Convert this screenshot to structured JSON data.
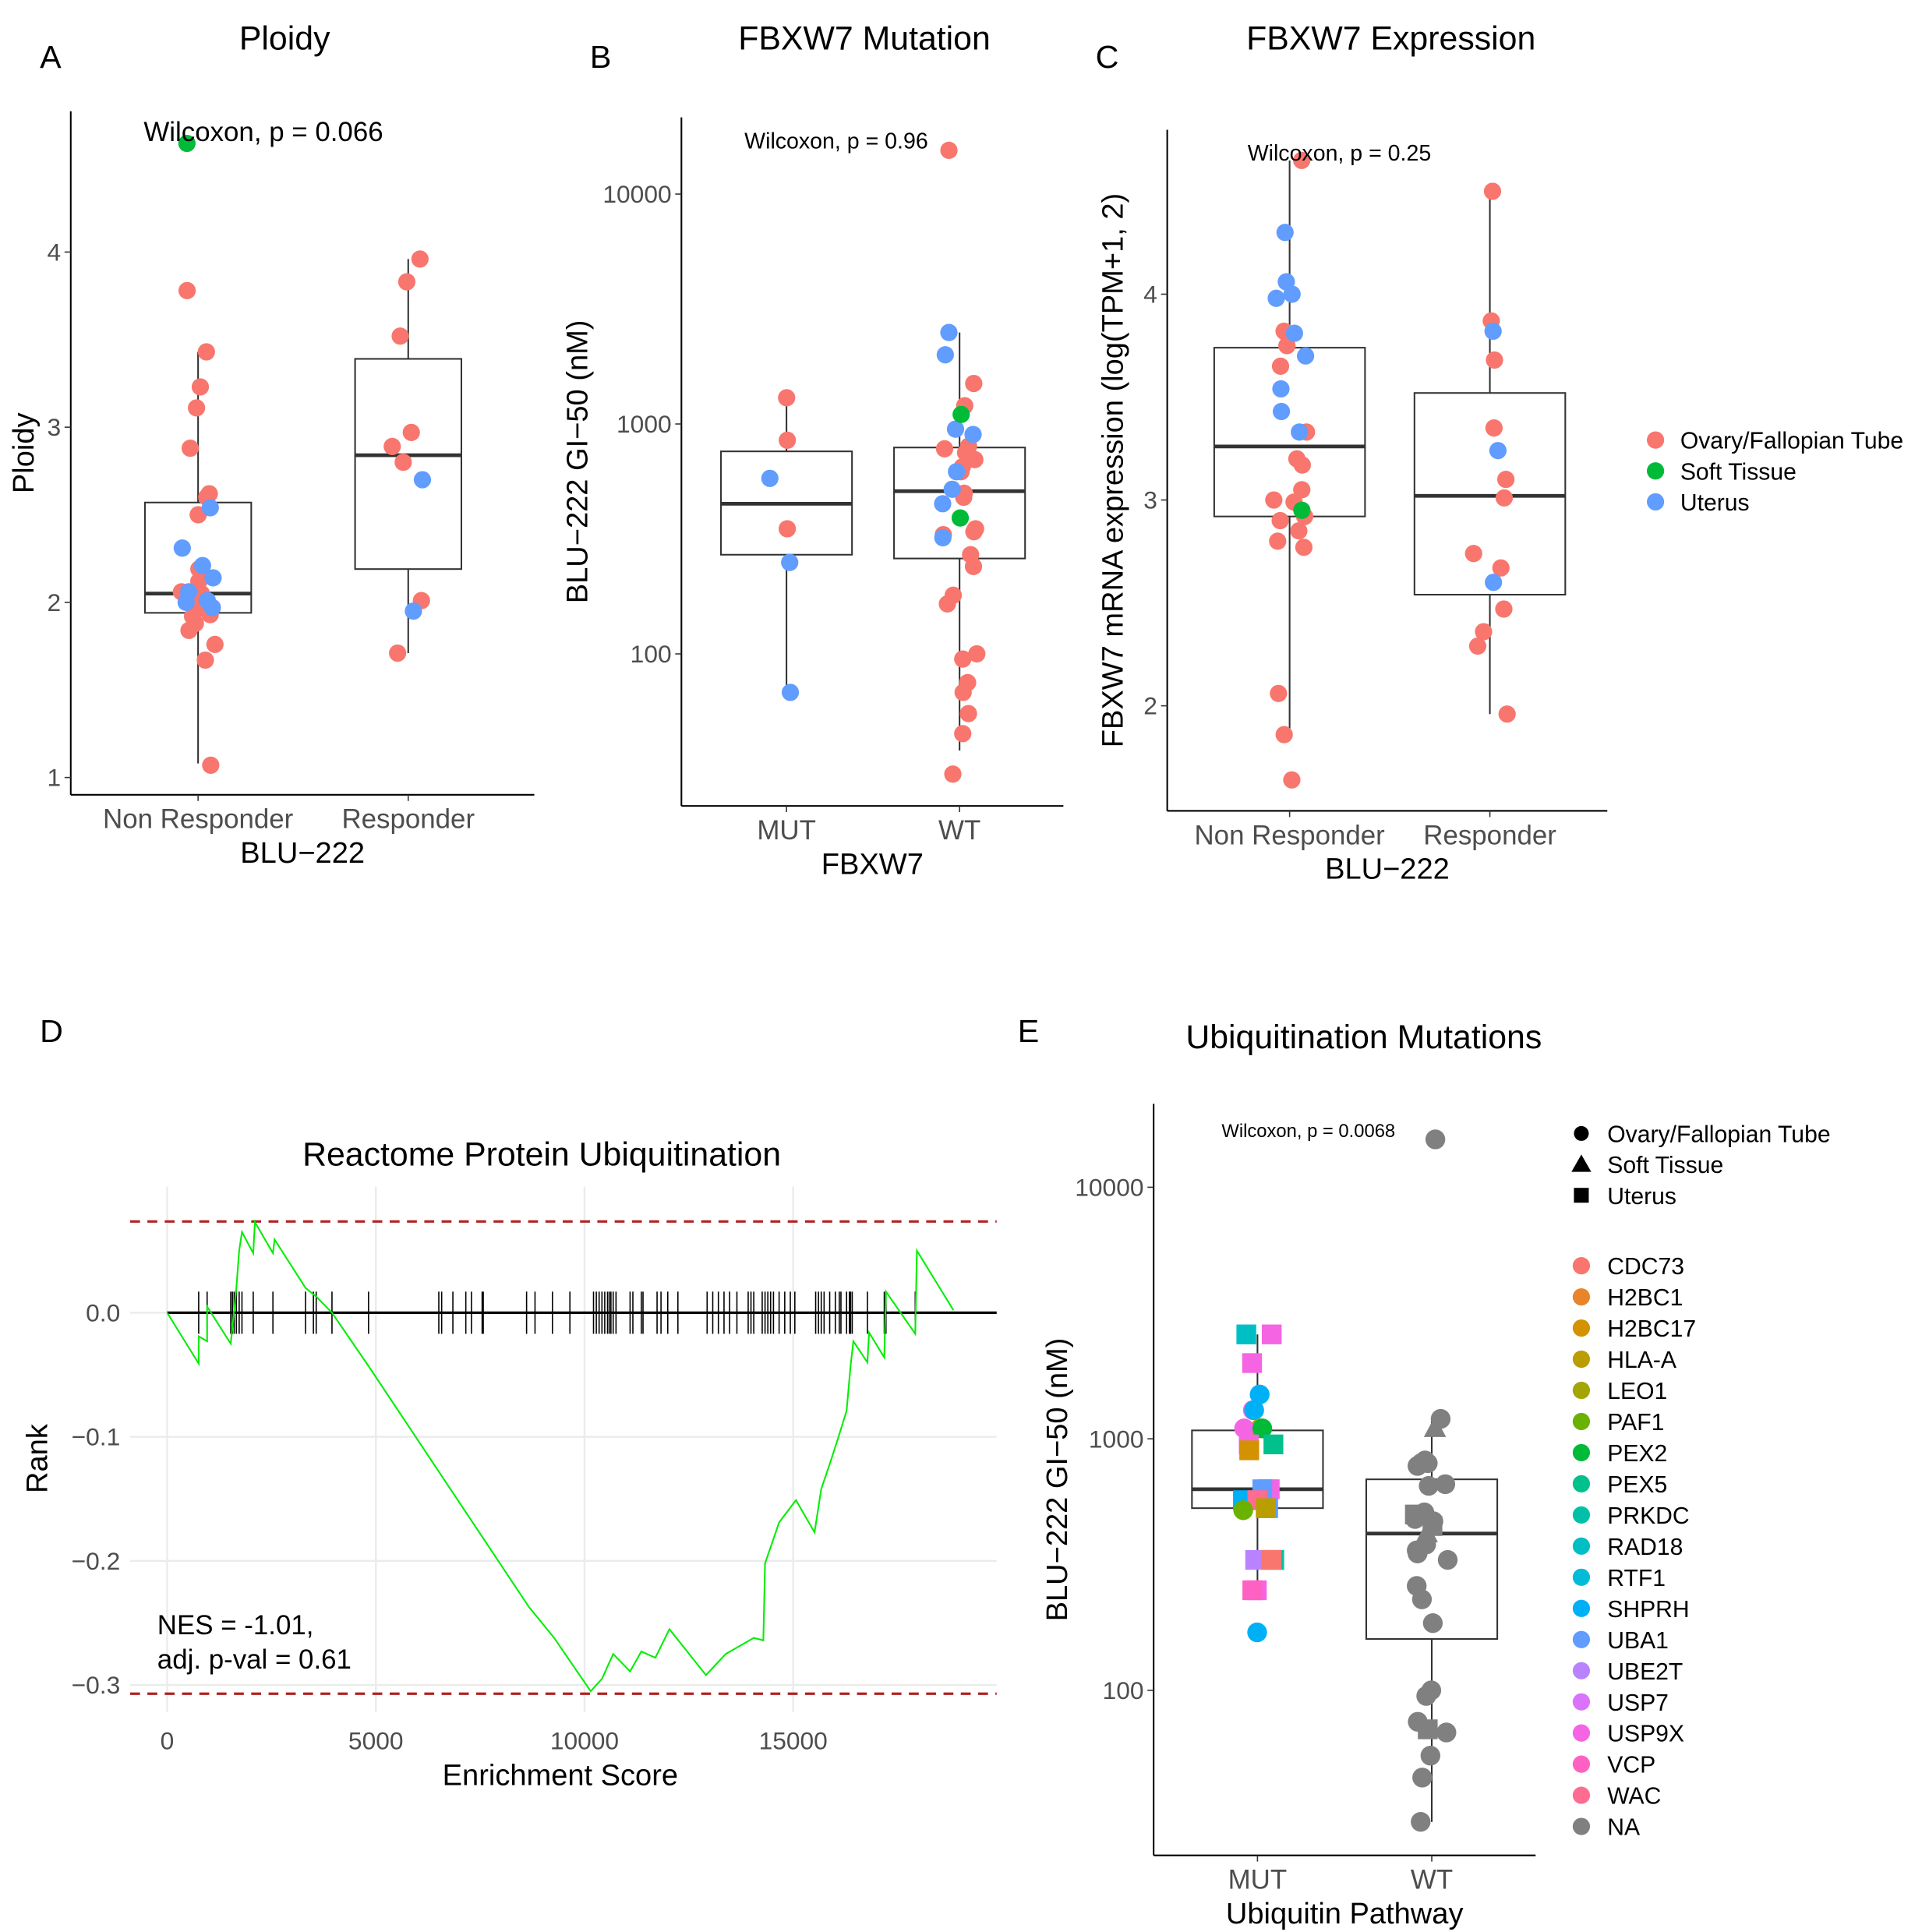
{
  "panel_labels": [
    "A",
    "B",
    "C",
    "D",
    "E"
  ],
  "tissue_colors": {
    "Ovary/Fallopian Tube": "#F8766D",
    "Soft Tissue": "#00BA38",
    "Uterus": "#619CFF"
  },
  "gene_colors": {
    "CDC73": "#F8766D",
    "H2BC1": "#E8852A",
    "H2BC17": "#D39200",
    "HLA-A": "#BA9E00",
    "LEO1": "#A3A500",
    "PAF1": "#6BB100",
    "PEX2": "#00BA38",
    "PEX5": "#00C08B",
    "PRKDC": "#00C1A7",
    "RAD18": "#00BFC4",
    "RTF1": "#00BCD8",
    "SHPRH": "#00B0F6",
    "UBA1": "#619CFF",
    "UBE2T": "#B983FF",
    "USP7": "#DB72FB",
    "USP9X": "#F564E3",
    "VCP": "#FF61C3",
    "WAC": "#FF6C91",
    "NA": "#808080"
  },
  "chart_data": [
    {
      "type": "box",
      "title": "Ploidy",
      "xlabel": "BLU−222",
      "ylabel": "Ploidy",
      "y_scale": "linear",
      "yticks": [
        1,
        2,
        3,
        4
      ],
      "ytick_labels": [
        "1",
        "2",
        "3",
        "4"
      ],
      "annotation": "Wilcoxon, p = 0.066",
      "groups": [
        {
          "name": "Non Responder",
          "box": {
            "lower": 1.08,
            "q1": 1.94,
            "median": 2.05,
            "q3": 2.57,
            "upper": 3.43
          },
          "points": {
            "Ovary/Fallopian Tube": [
              3.78,
              3.43,
              3.23,
              3.11,
              2.88,
              2.62,
              2.6,
              2.5,
              2.19,
              2.12,
              2.06,
              2.05,
              2.0,
              1.95,
              1.93,
              1.92,
              1.88,
              1.84,
              1.76,
              1.67,
              1.07
            ],
            "Uterus": [
              2.54,
              2.31,
              2.21,
              2.14,
              2.06,
              2.01,
              2.0,
              1.97
            ],
            "Soft Tissue": [
              4.62
            ]
          },
          "outliers": []
        },
        {
          "name": "Responder",
          "box": {
            "lower": 1.71,
            "q1": 2.19,
            "median": 2.84,
            "q3": 3.39,
            "upper": 3.96
          },
          "points": {
            "Ovary/Fallopian Tube": [
              3.96,
              3.83,
              3.52,
              2.97,
              2.89,
              2.8,
              2.01,
              1.71
            ],
            "Uterus": [
              2.7,
              1.95
            ],
            "Soft Tissue": []
          },
          "outliers": []
        }
      ]
    },
    {
      "type": "box",
      "title": "FBXW7 Mutation",
      "xlabel": "FBXW7",
      "ylabel": "BLU−222 GI−50 (nM)",
      "y_scale": "log10",
      "yticks": [
        100,
        1000,
        10000
      ],
      "ytick_labels": [
        "100",
        "1000",
        "10000"
      ],
      "annotation": "Wilcoxon, p = 0.96",
      "groups": [
        {
          "name": "MUT",
          "box": {
            "lower": 68,
            "q1": 270,
            "median": 450,
            "q3": 760,
            "upper": 1300
          },
          "points": {
            "Ovary/Fallopian Tube": [
              1300,
              850,
              350
            ],
            "Uterus": [
              580,
              250,
              68
            ],
            "Soft Tissue": []
          },
          "outliers": []
        },
        {
          "name": "WT",
          "box": {
            "lower": 38,
            "q1": 260,
            "median": 510,
            "q3": 790,
            "upper": 2500
          },
          "points": {
            "Ovary/Fallopian Tube": [
              15500,
              1500,
              1200,
              800,
              780,
              750,
              700,
              650,
              620,
              500,
              480,
              350,
              340,
              330,
              270,
              240,
              180,
              165,
              100,
              95,
              75,
              68,
              55,
              45,
              30
            ],
            "Uterus": [
              2500,
              2000,
              950,
              900,
              620,
              520,
              450,
              320
            ],
            "Soft Tissue": [
              1100,
              390
            ]
          },
          "outliers": []
        }
      ]
    },
    {
      "type": "box",
      "title": "FBXW7 Expression",
      "xlabel": "BLU−222",
      "ylabel": "FBXW7 mRNA expression (log(TPM+1, 2)",
      "y_scale": "linear",
      "yticks": [
        2,
        3,
        4
      ],
      "ytick_labels": [
        "2",
        "3",
        "4"
      ],
      "annotation": "Wilcoxon, p = 0.25",
      "legend": {
        "position": "right",
        "entries": [
          "Ovary/Fallopian Tube",
          "Soft Tissue",
          "Uterus"
        ]
      },
      "groups": [
        {
          "name": "Non Responder",
          "box": {
            "lower": 1.86,
            "q1": 2.92,
            "median": 3.26,
            "q3": 3.74,
            "upper": 4.65
          },
          "points": {
            "Ovary/Fallopian Tube": [
              4.65,
              3.82,
              3.75,
              3.65,
              3.33,
              3.2,
              3.17,
              3.05,
              3.0,
              2.99,
              2.92,
              2.9,
              2.85,
              2.8,
              2.77,
              2.06,
              1.86,
              1.64
            ],
            "Uterus": [
              4.3,
              4.06,
              4.0,
              3.98,
              3.81,
              3.7,
              3.54,
              3.43,
              3.33
            ],
            "Soft Tissue": [
              2.95
            ]
          },
          "outliers": [
            1.64
          ]
        },
        {
          "name": "Responder",
          "box": {
            "lower": 1.96,
            "q1": 2.54,
            "median": 3.02,
            "q3": 3.52,
            "upper": 4.5
          },
          "points": {
            "Ovary/Fallopian Tube": [
              4.5,
              3.87,
              3.68,
              3.35,
              3.1,
              3.01,
              2.74,
              2.67,
              2.47,
              2.36,
              2.29,
              1.96
            ],
            "Uterus": [
              3.82,
              3.24,
              2.6
            ],
            "Soft Tissue": []
          },
          "outliers": []
        }
      ]
    },
    {
      "type": "line",
      "title": "Reactome Protein Ubiquitination",
      "xlabel": "Enrichment Score",
      "ylabel": "Rank",
      "xlim": [
        -889,
        19876
      ],
      "ylim": [
        -0.322,
        0.102
      ],
      "grid": true,
      "xticks": [
        0,
        5000,
        10000,
        15000
      ],
      "xtick_labels": [
        "0",
        "5000",
        "10000",
        "15000"
      ],
      "yticks": [
        0,
        -0.1,
        -0.2,
        -0.3
      ],
      "ytick_labels": [
        "0.0",
        "−0.1",
        "−0.2",
        "−0.3"
      ],
      "annotation": [
        "NES = -1.01,",
        "adj. p-val = 0.61"
      ],
      "line_color": "#00EE00",
      "threshold_lines": [
        0.0735,
        -0.307
      ],
      "threshold_color": "#B22222",
      "series": {
        "x": [
          0,
          755,
          755,
          957,
          957,
          1523,
          1658,
          1725,
          1792,
          2062,
          2102,
          2534,
          2574,
          3315,
          3571,
          3949,
          4825,
          8666,
          9272,
          10148,
          10418,
          10687,
          11092,
          11361,
          11698,
          12035,
          12911,
          13383,
          14056,
          14285,
          14326,
          14663,
          15067,
          15512,
          15673,
          15875,
          16078,
          16280,
          16375,
          16442,
          16779,
          16819,
          17183,
          17224,
          17925,
          17965,
          18841
        ],
        "y": [
          0,
          -0.041,
          -0.019,
          -0.023,
          0.005,
          -0.025,
          0.02,
          0.05,
          0.065,
          0.048,
          0.073,
          0.048,
          0.059,
          0.02,
          0.013,
          0,
          -0.043,
          -0.237,
          -0.262,
          -0.305,
          -0.295,
          -0.275,
          -0.289,
          -0.273,
          -0.278,
          -0.255,
          -0.292,
          -0.275,
          -0.262,
          -0.264,
          -0.202,
          -0.169,
          -0.151,
          -0.177,
          -0.142,
          -0.122,
          -0.101,
          -0.079,
          -0.043,
          -0.023,
          -0.04,
          -0.016,
          -0.036,
          0.017,
          -0.017,
          0.05,
          0.002
        ]
      },
      "hits": [
        755,
        957,
        1523,
        1563,
        1604,
        1658,
        1725,
        1792,
        2062,
        2534,
        3315,
        3504,
        3571,
        3949,
        4825,
        6509,
        6577,
        6846,
        7156,
        7291,
        7547,
        7574,
        8612,
        8814,
        9232,
        9650,
        10216,
        10283,
        10350,
        10418,
        10485,
        10552,
        10593,
        10633,
        10687,
        10755,
        11092,
        11159,
        11361,
        11402,
        11739,
        11833,
        11995,
        12238,
        12938,
        13073,
        13208,
        13343,
        13477,
        13652,
        13922,
        13989,
        14056,
        14258,
        14326,
        14393,
        14460,
        14528,
        14663,
        14798,
        14932,
        15040,
        15539,
        15606,
        15673,
        15741,
        15875,
        16010,
        16105,
        16145,
        16280,
        16348,
        16375,
        16415,
        16779,
        17183,
        17224,
        17925
      ]
    },
    {
      "type": "box",
      "title": "Ubiquitination Mutations",
      "xlabel": "Ubiquitin Pathway",
      "ylabel": "BLU−222 GI−50 (nM)",
      "y_scale": "log10",
      "yticks": [
        100,
        1000,
        10000
      ],
      "ytick_labels": [
        "100",
        "1000",
        "10000"
      ],
      "annotation": "Wilcoxon, p = 0.0068",
      "legend": {
        "position": "right",
        "shapes": [
          [
            "Ovary/Fallopian Tube",
            "circle"
          ],
          [
            "Soft Tissue",
            "triangle"
          ],
          [
            "Uterus",
            "square"
          ]
        ],
        "colors": [
          "CDC73",
          "H2BC1",
          "H2BC17",
          "HLA-A",
          "LEO1",
          "PAF1",
          "PEX2",
          "PEX5",
          "PRKDC",
          "RAD18",
          "RTF1",
          "SHPRH",
          "UBA1",
          "UBE2T",
          "USP7",
          "USP9X",
          "VCP",
          "WAC",
          "NA"
        ]
      },
      "groups": [
        {
          "name": "MUT",
          "box": {
            "lower": 250,
            "q1": 530,
            "median": 630,
            "q3": 1080,
            "upper": 2600
          },
          "points": [
            [
              2600,
              "USP9X",
              "square"
            ],
            [
              2600,
              "RAD18",
              "square"
            ],
            [
              2000,
              "USP9X",
              "square"
            ],
            [
              1500,
              "SHPRH",
              "circle"
            ],
            [
              1300,
              "USP9X",
              "circle"
            ],
            [
              1300,
              "SHPRH",
              "circle"
            ],
            [
              1100,
              "HLA-A",
              "circle"
            ],
            [
              1100,
              "USP9X",
              "circle"
            ],
            [
              1100,
              "PEX2",
              "circle"
            ],
            [
              950,
              "PEX5",
              "square"
            ],
            [
              950,
              "USP9X",
              "square"
            ],
            [
              900,
              "H2BC17",
              "square"
            ],
            [
              630,
              "USP7",
              "square"
            ],
            [
              630,
              "USP9X",
              "square"
            ],
            [
              630,
              "UBA1",
              "square"
            ],
            [
              570,
              "SHPRH",
              "square"
            ],
            [
              570,
              "WAC",
              "square"
            ],
            [
              530,
              "UBA1",
              "square"
            ],
            [
              530,
              "HLA-A",
              "square"
            ],
            [
              520,
              "PAF1",
              "circle"
            ],
            [
              330,
              "UBE2T",
              "square"
            ],
            [
              330,
              "PRKDC",
              "square"
            ],
            [
              330,
              "CDC73",
              "square"
            ],
            [
              250,
              "USP9X",
              "square"
            ],
            [
              250,
              "VCP",
              "square"
            ],
            [
              170,
              "SHPRH",
              "circle"
            ]
          ],
          "outliers": [
            170
          ]
        },
        {
          "name": "WT",
          "box": {
            "lower": 30,
            "q1": 160,
            "median": 420,
            "q3": 690,
            "upper": 1200
          },
          "points": [
            [
              15500,
              "NA",
              "circle"
            ],
            [
              1200,
              "NA",
              "circle"
            ],
            [
              1100,
              "NA",
              "triangle"
            ],
            [
              820,
              "NA",
              "circle"
            ],
            [
              800,
              "NA",
              "circle"
            ],
            [
              780,
              "NA",
              "circle"
            ],
            [
              800,
              "NA",
              "circle"
            ],
            [
              660,
              "NA",
              "circle"
            ],
            [
              650,
              "NA",
              "circle"
            ],
            [
              510,
              "NA",
              "circle"
            ],
            [
              500,
              "NA",
              "square"
            ],
            [
              480,
              "NA",
              "circle"
            ],
            [
              470,
              "NA",
              "circle"
            ],
            [
              450,
              "NA",
              "square"
            ],
            [
              420,
              "NA",
              "triangle"
            ],
            [
              380,
              "NA",
              "circle"
            ],
            [
              360,
              "NA",
              "circle"
            ],
            [
              350,
              "NA",
              "circle"
            ],
            [
              330,
              "NA",
              "circle"
            ],
            [
              260,
              "NA",
              "circle"
            ],
            [
              230,
              "NA",
              "circle"
            ],
            [
              185,
              "NA",
              "circle"
            ],
            [
              100,
              "NA",
              "circle"
            ],
            [
              95,
              "NA",
              "circle"
            ],
            [
              75,
              "NA",
              "circle"
            ],
            [
              70,
              "NA",
              "square"
            ],
            [
              68,
              "NA",
              "circle"
            ],
            [
              55,
              "NA",
              "circle"
            ],
            [
              45,
              "NA",
              "circle"
            ],
            [
              30,
              "NA",
              "circle"
            ]
          ],
          "outliers": [
            15500
          ]
        }
      ]
    }
  ]
}
